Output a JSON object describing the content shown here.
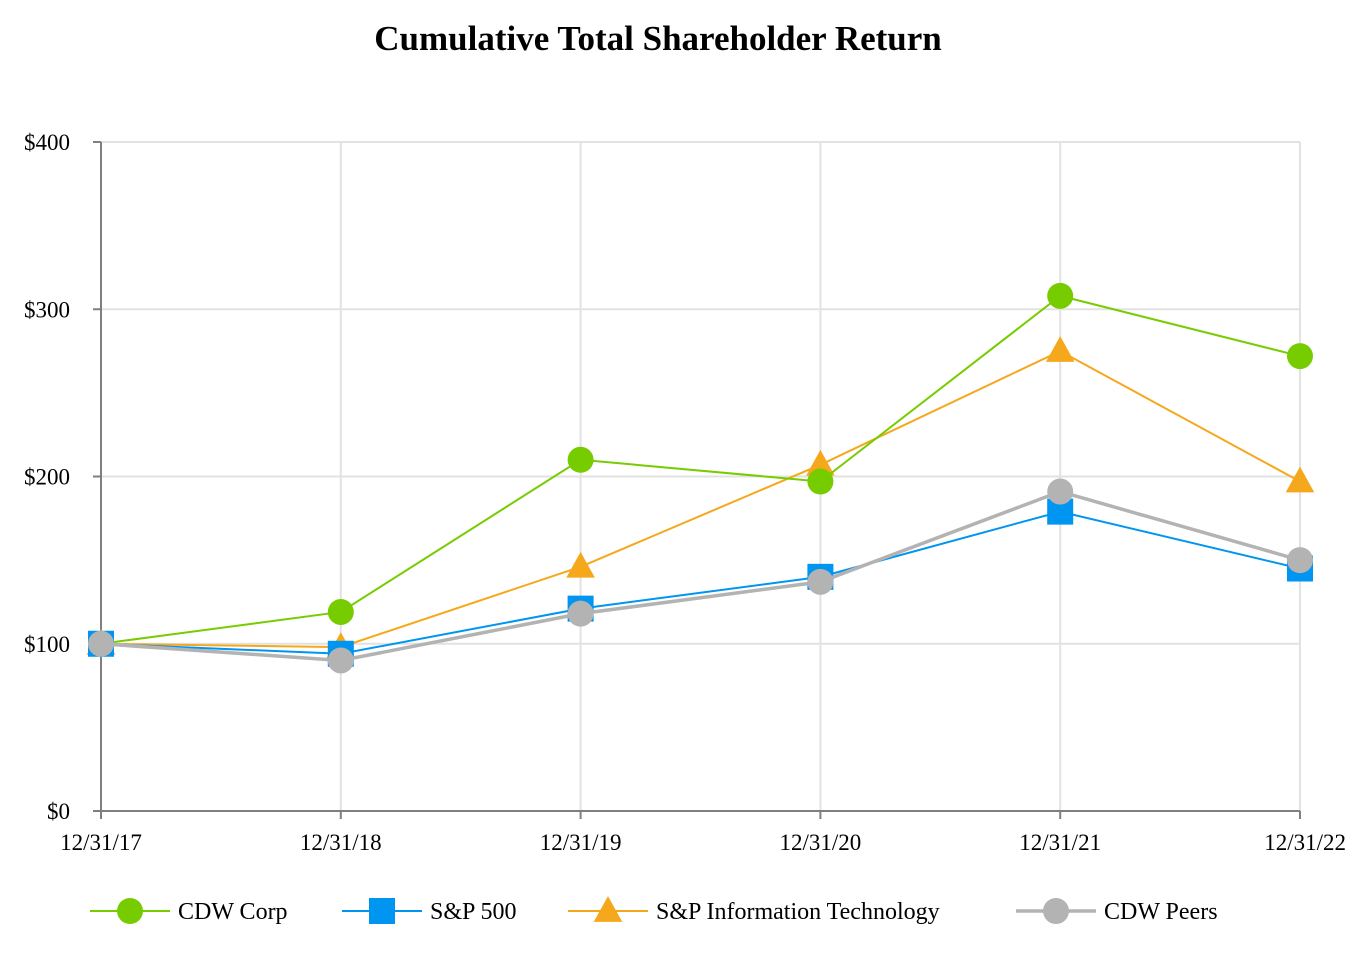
{
  "chart_data": {
    "type": "line",
    "title": "Cumulative Total Shareholder Return",
    "xlabel": "",
    "ylabel": "",
    "categories": [
      "12/31/17",
      "12/31/18",
      "12/31/19",
      "12/31/20",
      "12/31/21",
      "12/31/22"
    ],
    "ylim": [
      0,
      400
    ],
    "yticks": [
      0,
      100,
      200,
      300,
      400
    ],
    "ytick_labels": [
      "$0",
      "$100",
      "$200",
      "$300",
      "$400"
    ],
    "grid": true,
    "legend_position": "bottom",
    "series": [
      {
        "name": "CDW Corp",
        "color": "#77cc00",
        "marker": "circle",
        "values": [
          100,
          119,
          210,
          197,
          308,
          272
        ]
      },
      {
        "name": "S&P 500",
        "color": "#0095f0",
        "marker": "square",
        "values": [
          100,
          94,
          121,
          140,
          179,
          145
        ]
      },
      {
        "name": "S&P Information Technology",
        "color": "#f5a81c",
        "marker": "triangle",
        "values": [
          100,
          98,
          146,
          207,
          275,
          197
        ]
      },
      {
        "name": "CDW Peers",
        "color": "#b3b3b3",
        "marker": "circle",
        "values": [
          100,
          90,
          118,
          137,
          191,
          150
        ]
      }
    ]
  }
}
